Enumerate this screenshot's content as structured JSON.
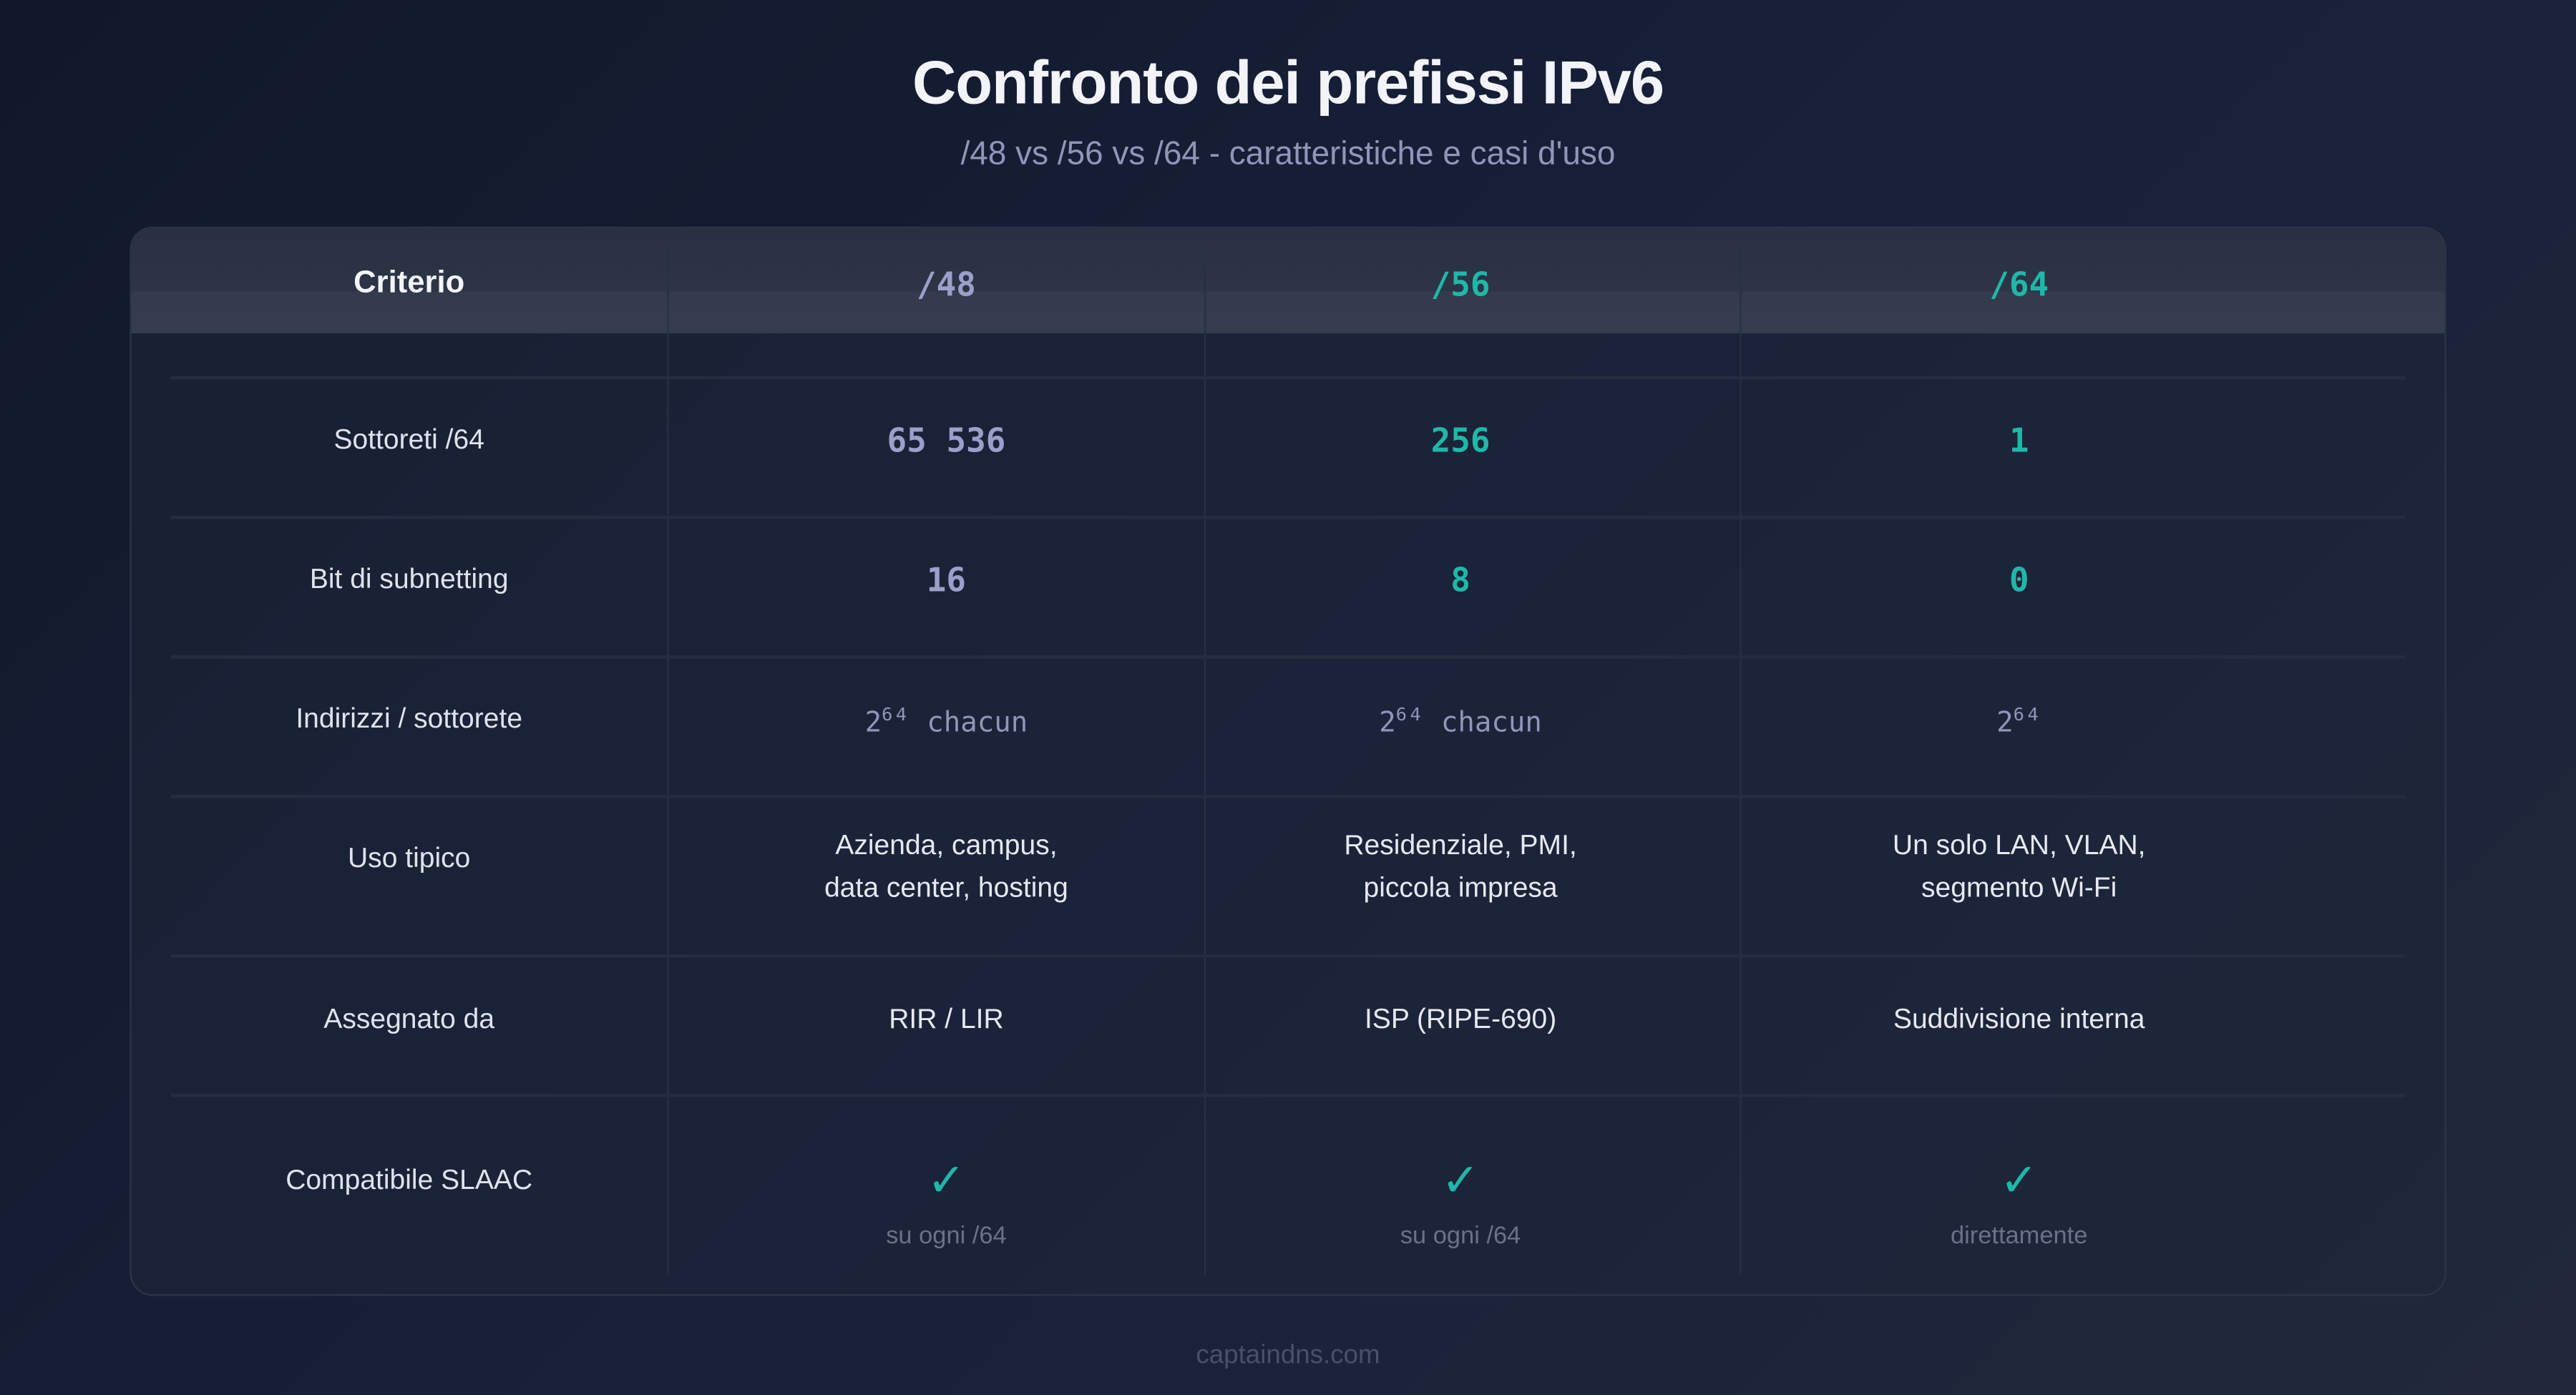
{
  "title": "Confronto dei prefissi IPv6",
  "subtitle": "/48 vs /56 vs /64 - caratteristiche e casi d'uso",
  "header": {
    "criterion": "Criterio",
    "col48": "/48",
    "col56": "/56",
    "col64": "/64"
  },
  "rows": [
    {
      "label": "Sottoreti /64",
      "v48": "65 536",
      "v56": "256",
      "v64": "1"
    },
    {
      "label": "Bit di subnetting",
      "v48": "16",
      "v56": "8",
      "v64": "0"
    },
    {
      "label": "Indirizzi / sottorete",
      "base": "2",
      "exp": "64",
      "v48_suffix": "chacun",
      "v56_suffix": "chacun"
    },
    {
      "label": "Uso tipico",
      "v48": [
        "Azienda, campus,",
        "data center, hosting"
      ],
      "v56": [
        "Residenziale, PMI,",
        "piccola impresa"
      ],
      "v64": [
        "Un solo LAN, VLAN,",
        "segmento Wi-Fi"
      ]
    },
    {
      "label": "Assegnato da",
      "v48": "RIR / LIR",
      "v56": "ISP (RIPE-690)",
      "v64": "Suddivisione interna"
    },
    {
      "label": "Compatibile SLAAC",
      "check": "✓",
      "icon": "check-icon",
      "v48": "su ogni /64",
      "v56": "su ogni /64",
      "v64": "direttamente"
    }
  ],
  "footer": "captaindns.com",
  "colors": {
    "teal": "#1fb8a8",
    "muted": "#9aa0c8",
    "background": "#141c2e"
  }
}
